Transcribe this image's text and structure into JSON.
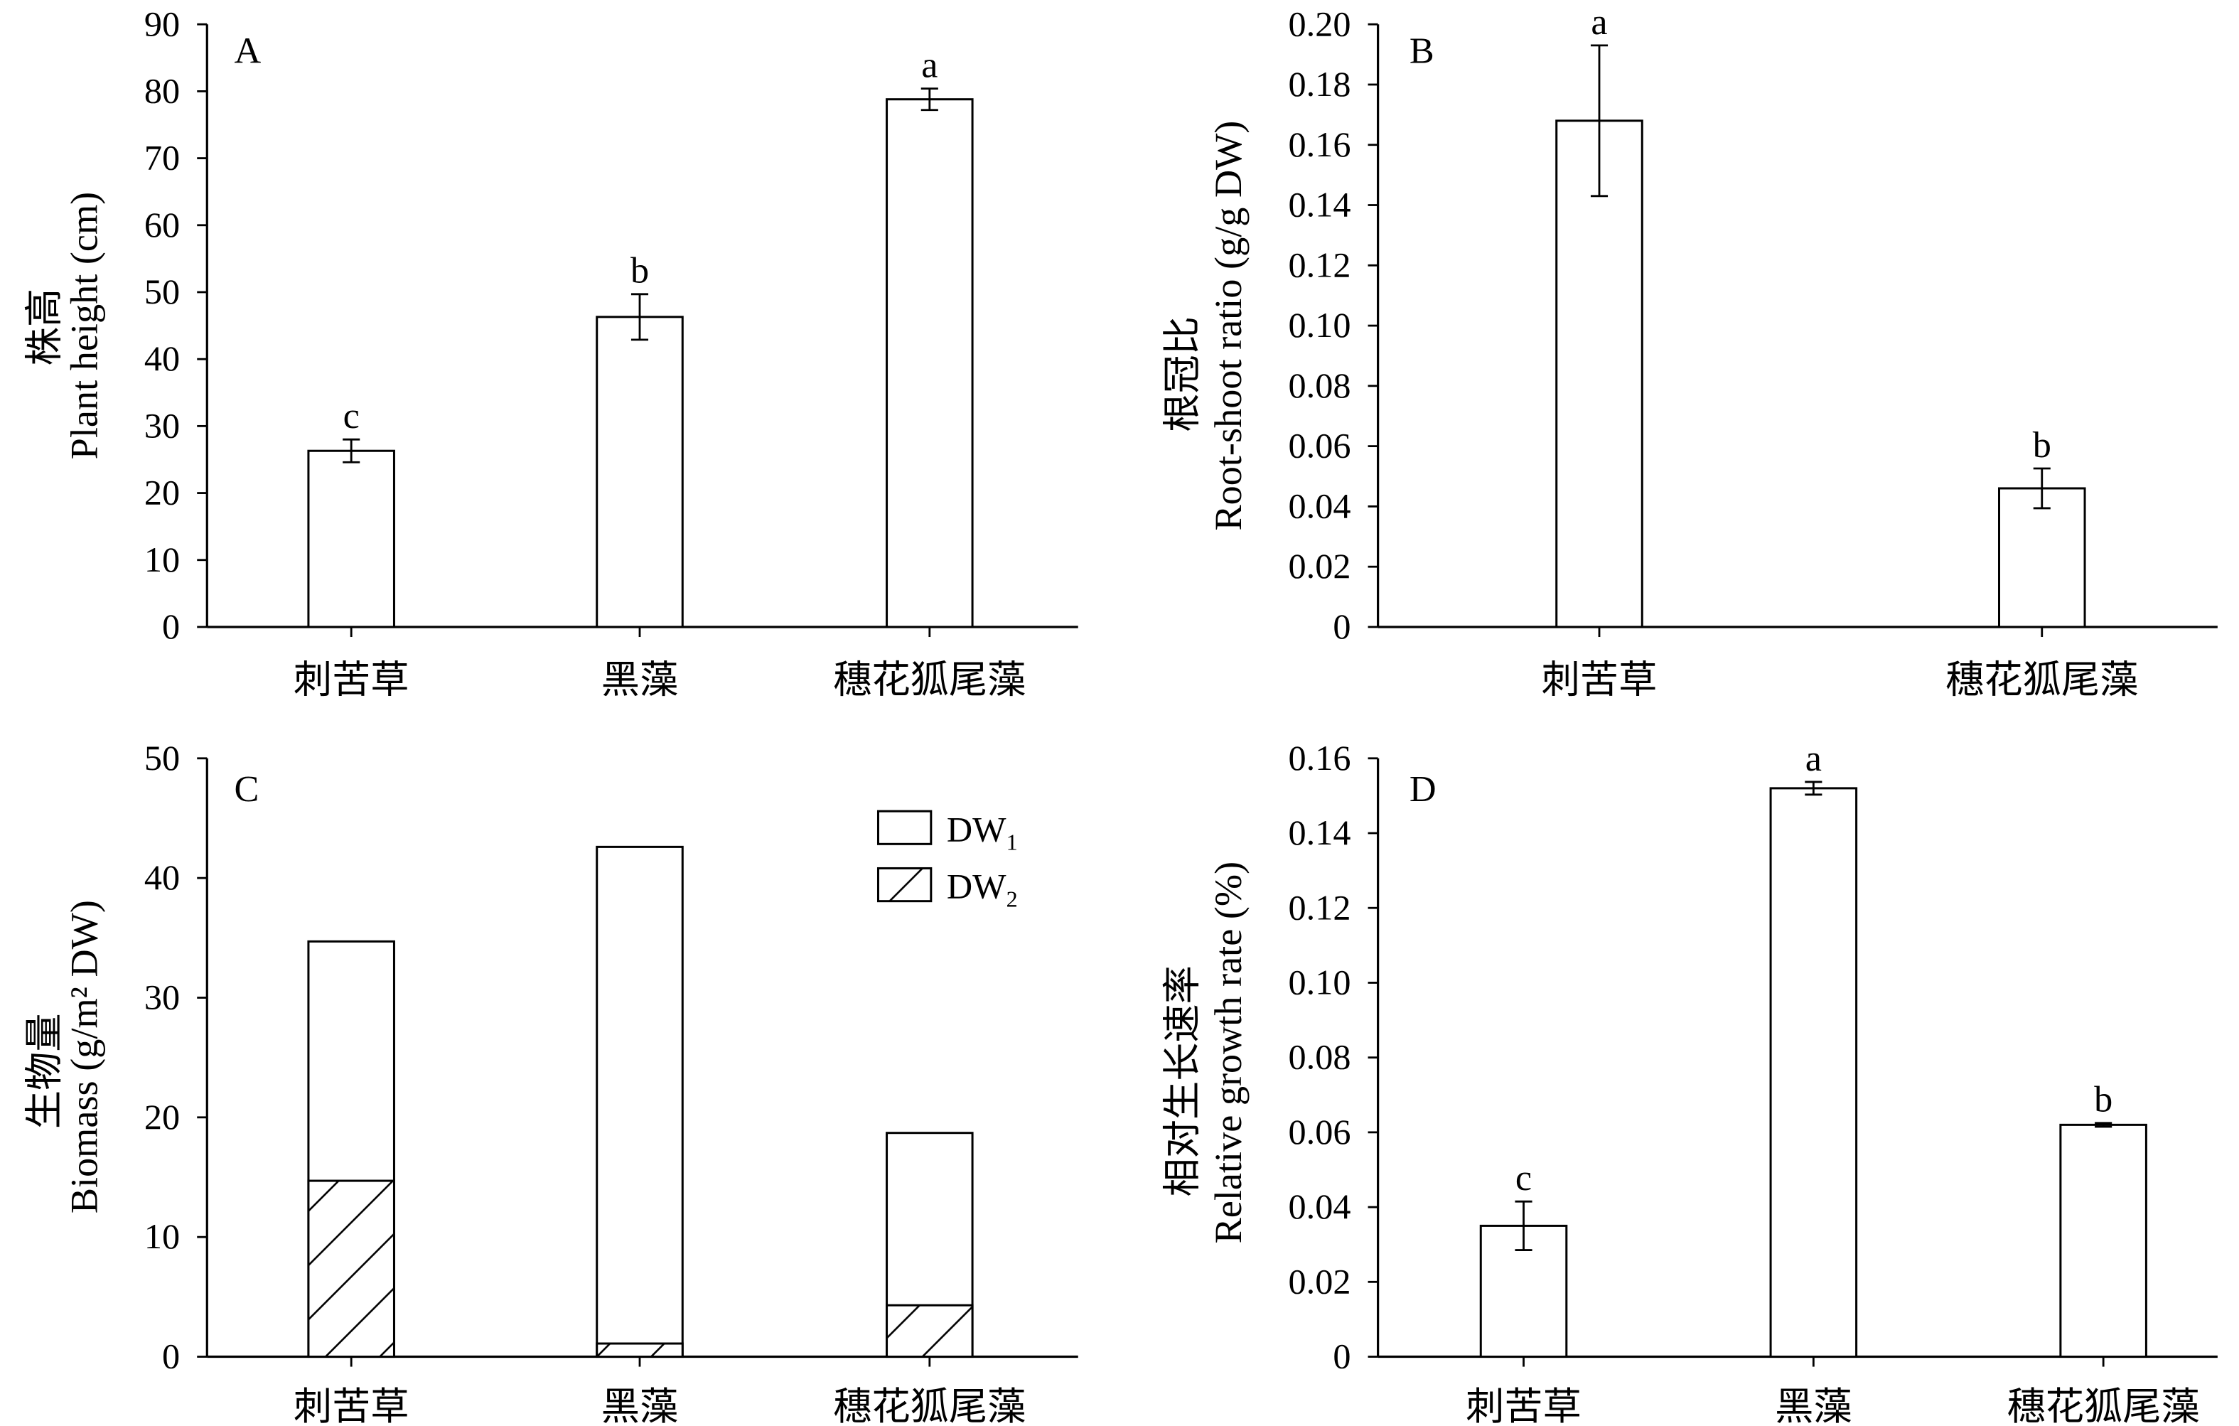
{
  "colors": {
    "bar_fill": "#ffffff",
    "stroke": "#000000"
  },
  "chart_data": [
    {
      "panel": "A",
      "type": "bar",
      "categories": [
        "刺苦草",
        "黑藻",
        "穗花狐尾藻"
      ],
      "values": [
        26.3,
        46.3,
        78.8
      ],
      "errors": [
        1.7,
        3.4,
        1.6
      ],
      "significance": [
        "c",
        "b",
        "a"
      ],
      "ylabel": [
        "株高",
        "Plant height (cm)"
      ],
      "ylim": [
        0,
        90
      ],
      "ytick_labels": [
        "0",
        "10",
        "20",
        "30",
        "40",
        "50",
        "60",
        "70",
        "80",
        "90"
      ],
      "grid": false
    },
    {
      "panel": "B",
      "type": "bar",
      "categories": [
        "刺苦草",
        "穗花狐尾藻"
      ],
      "values": [
        0.168,
        0.046
      ],
      "errors": [
        0.025,
        0.0066
      ],
      "significance": [
        "a",
        "b"
      ],
      "ylabel": [
        "根冠比",
        "Root-shoot ratio (g/g DW)"
      ],
      "ylim": [
        0,
        0.2
      ],
      "ytick_labels": [
        "0",
        "0.02",
        "0.04",
        "0.06",
        "0.08",
        "0.10",
        "0.12",
        "0.14",
        "0.16",
        "0.18",
        "0.20"
      ],
      "grid": false
    },
    {
      "panel": "C",
      "type": "bar",
      "overlaid": true,
      "categories": [
        "刺苦草",
        "黑藻",
        "穗花狐尾藻"
      ],
      "series": [
        {
          "name": "DW",
          "subscript": "1",
          "hatched": false,
          "values": [
            34.7,
            42.6,
            18.7
          ]
        },
        {
          "name": "DW",
          "subscript": "2",
          "hatched": true,
          "values": [
            14.7,
            1.1,
            4.3
          ]
        }
      ],
      "legend": "top-right",
      "ylabel": [
        "生物量",
        "Biomass (g/m² DW)"
      ],
      "ylim": [
        0,
        50
      ],
      "ytick_labels": [
        "0",
        "10",
        "20",
        "30",
        "40",
        "50"
      ],
      "grid": false
    },
    {
      "panel": "D",
      "type": "bar",
      "categories": [
        "刺苦草",
        "黑藻",
        "穗花狐尾藻"
      ],
      "values": [
        0.035,
        0.152,
        0.062
      ],
      "errors": [
        0.0065,
        0.0017,
        0.0005
      ],
      "significance": [
        "c",
        "a",
        "b"
      ],
      "ylabel": [
        "相对生长速率",
        "Relative growth rate (%)"
      ],
      "ylim": [
        0,
        0.16
      ],
      "ytick_labels": [
        "0",
        "0.02",
        "0.04",
        "0.06",
        "0.08",
        "0.10",
        "0.12",
        "0.14",
        "0.16"
      ],
      "grid": false
    }
  ]
}
